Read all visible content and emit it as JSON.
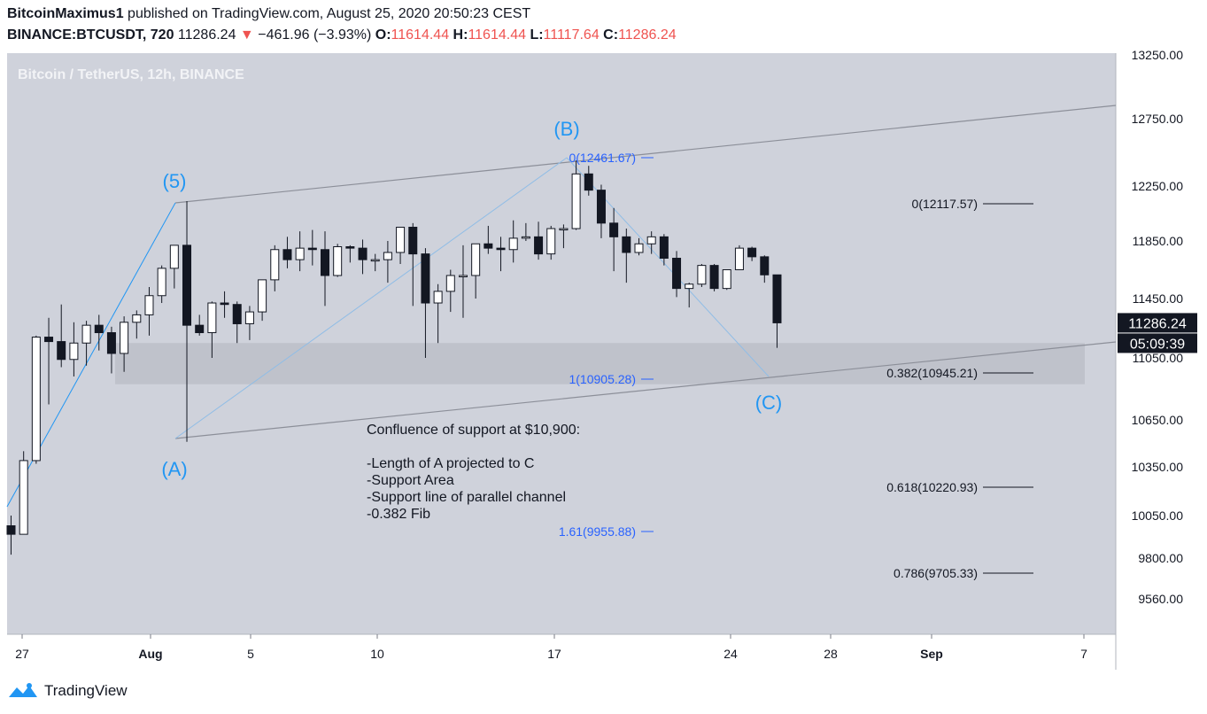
{
  "header": {
    "author": "BitcoinMaximus1",
    "published": "published on TradingView.com, August 25, 2020 20:50:23 CEST",
    "symbol": "BINANCE:BTCUSDT, 720",
    "last": "11286.24",
    "change": "−461.96 (−3.93%)",
    "o_label": "O:",
    "o": "11614.44",
    "h_label": "H:",
    "h": "11614.44",
    "l_label": "L:",
    "l": "11117.64",
    "c_label": "C:",
    "c": "11286.24"
  },
  "footer": {
    "brand": "TradingView"
  },
  "colors": {
    "pane_bg": "#cfd2db",
    "up": "#ffffff",
    "down": "#131722",
    "wave": "#2196f3",
    "fib": "#2962ff",
    "line": "#8c8f99"
  },
  "chart_data": {
    "type": "candlestick",
    "title": "Bitcoin / TetherUS, 12h, BINANCE",
    "xlabel": "",
    "ylabel": "",
    "ylim": [
      9290,
      13300
    ],
    "y_ticks": [
      "13250.00",
      "12750.00",
      "12250.00",
      "11850.00",
      "11450.00",
      "11050.00",
      "10650.00",
      "10350.00",
      "10050.00",
      "9800.00",
      "9560.00"
    ],
    "x_ticks": [
      "27",
      "Aug",
      "5",
      "10",
      "17",
      "24",
      "28",
      "Sep",
      "7"
    ],
    "price_label": "11286.24",
    "countdown": "05:09:39",
    "candles": [
      {
        "o": 9990,
        "h": 10050,
        "l": 9820,
        "c": 9940
      },
      {
        "o": 9940,
        "h": 10450,
        "l": 9940,
        "c": 10390
      },
      {
        "o": 10390,
        "h": 11200,
        "l": 10370,
        "c": 11190
      },
      {
        "o": 11190,
        "h": 11320,
        "l": 10750,
        "c": 11160
      },
      {
        "o": 11160,
        "h": 11410,
        "l": 10990,
        "c": 11040
      },
      {
        "o": 11040,
        "h": 11290,
        "l": 10930,
        "c": 11150
      },
      {
        "o": 11150,
        "h": 11300,
        "l": 11000,
        "c": 11270
      },
      {
        "o": 11270,
        "h": 11340,
        "l": 11100,
        "c": 11220
      },
      {
        "o": 11220,
        "h": 11260,
        "l": 10950,
        "c": 11080
      },
      {
        "o": 11080,
        "h": 11330,
        "l": 10960,
        "c": 11290
      },
      {
        "o": 11290,
        "h": 11370,
        "l": 11180,
        "c": 11340
      },
      {
        "o": 11340,
        "h": 11530,
        "l": 11200,
        "c": 11470
      },
      {
        "o": 11470,
        "h": 11680,
        "l": 11420,
        "c": 11660
      },
      {
        "o": 11660,
        "h": 11820,
        "l": 11520,
        "c": 11820
      },
      {
        "o": 11820,
        "h": 12140,
        "l": 10510,
        "c": 11270
      },
      {
        "o": 11270,
        "h": 11340,
        "l": 11200,
        "c": 11220
      },
      {
        "o": 11220,
        "h": 11430,
        "l": 11050,
        "c": 11420
      },
      {
        "o": 11420,
        "h": 11500,
        "l": 11320,
        "c": 11410
      },
      {
        "o": 11410,
        "h": 11430,
        "l": 11150,
        "c": 11280
      },
      {
        "o": 11280,
        "h": 11400,
        "l": 11170,
        "c": 11360
      },
      {
        "o": 11360,
        "h": 11580,
        "l": 11300,
        "c": 11580
      },
      {
        "o": 11580,
        "h": 11820,
        "l": 11500,
        "c": 11790
      },
      {
        "o": 11790,
        "h": 11880,
        "l": 11660,
        "c": 11720
      },
      {
        "o": 11720,
        "h": 11920,
        "l": 11640,
        "c": 11800
      },
      {
        "o": 11800,
        "h": 11930,
        "l": 11680,
        "c": 11790
      },
      {
        "o": 11790,
        "h": 11920,
        "l": 11400,
        "c": 11610
      },
      {
        "o": 11610,
        "h": 11830,
        "l": 11600,
        "c": 11810
      },
      {
        "o": 11810,
        "h": 11820,
        "l": 11700,
        "c": 11800
      },
      {
        "o": 11800,
        "h": 11860,
        "l": 11620,
        "c": 11720
      },
      {
        "o": 11720,
        "h": 11760,
        "l": 11640,
        "c": 11720
      },
      {
        "o": 11720,
        "h": 11850,
        "l": 11560,
        "c": 11770
      },
      {
        "o": 11770,
        "h": 11950,
        "l": 11690,
        "c": 11950
      },
      {
        "o": 11950,
        "h": 11980,
        "l": 11400,
        "c": 11760
      },
      {
        "o": 11760,
        "h": 11800,
        "l": 11050,
        "c": 11420
      },
      {
        "o": 11420,
        "h": 11550,
        "l": 11150,
        "c": 11500
      },
      {
        "o": 11500,
        "h": 11650,
        "l": 11360,
        "c": 11610
      },
      {
        "o": 11610,
        "h": 11820,
        "l": 11320,
        "c": 11610
      },
      {
        "o": 11610,
        "h": 11830,
        "l": 11450,
        "c": 11830
      },
      {
        "o": 11830,
        "h": 11960,
        "l": 11760,
        "c": 11800
      },
      {
        "o": 11800,
        "h": 11880,
        "l": 11640,
        "c": 11790
      },
      {
        "o": 11790,
        "h": 12000,
        "l": 11700,
        "c": 11870
      },
      {
        "o": 11870,
        "h": 11980,
        "l": 11850,
        "c": 11880
      },
      {
        "o": 11880,
        "h": 11990,
        "l": 11720,
        "c": 11760
      },
      {
        "o": 11760,
        "h": 11960,
        "l": 11720,
        "c": 11940
      },
      {
        "o": 11940,
        "h": 11970,
        "l": 11800,
        "c": 11940
      },
      {
        "o": 11940,
        "h": 12440,
        "l": 11930,
        "c": 12340
      },
      {
        "o": 12340,
        "h": 12400,
        "l": 12180,
        "c": 12220
      },
      {
        "o": 12220,
        "h": 12260,
        "l": 11870,
        "c": 11980
      },
      {
        "o": 11980,
        "h": 12090,
        "l": 11640,
        "c": 11880
      },
      {
        "o": 11880,
        "h": 11940,
        "l": 11560,
        "c": 11770
      },
      {
        "o": 11770,
        "h": 11870,
        "l": 11750,
        "c": 11830
      },
      {
        "o": 11830,
        "h": 11920,
        "l": 11760,
        "c": 11880
      },
      {
        "o": 11880,
        "h": 11900,
        "l": 11680,
        "c": 11730
      },
      {
        "o": 11730,
        "h": 11780,
        "l": 11460,
        "c": 11520
      },
      {
        "o": 11520,
        "h": 11560,
        "l": 11390,
        "c": 11550
      },
      {
        "o": 11550,
        "h": 11690,
        "l": 11530,
        "c": 11680
      },
      {
        "o": 11680,
        "h": 11690,
        "l": 11500,
        "c": 11520
      },
      {
        "o": 11520,
        "h": 11650,
        "l": 11510,
        "c": 11650
      },
      {
        "o": 11650,
        "h": 11820,
        "l": 11650,
        "c": 11800
      },
      {
        "o": 11800,
        "h": 11810,
        "l": 11710,
        "c": 11740
      },
      {
        "o": 11740,
        "h": 11750,
        "l": 11560,
        "c": 11614.44
      },
      {
        "o": 11614.44,
        "h": 11614.44,
        "l": 11117.64,
        "c": 11286.24
      }
    ],
    "wave_labels": [
      "(5)",
      "(A)",
      "(B)",
      "(C)"
    ],
    "fib_left": [
      {
        "label": "0(12461.67)",
        "price": 12461.67
      },
      {
        "label": "1(10905.28)",
        "price": 10905.28
      },
      {
        "label": "1.61(9955.88)",
        "price": 9955.88
      }
    ],
    "fib_right": [
      {
        "label": "0(12117.57)",
        "price": 12117.57
      },
      {
        "label": "0.382(10945.21)",
        "price": 10945.21
      },
      {
        "label": "0.618(10220.93)",
        "price": 10220.93
      },
      {
        "label": "0.786(9705.33)",
        "price": 9705.33
      }
    ],
    "support_area": [
      10880,
      11150
    ],
    "annotation": [
      "Confluence of support at $10,900:",
      "",
      "-Length of A projected to C",
      "-Support Area",
      "-Support line of parallel channel",
      "-0.382 Fib"
    ]
  }
}
